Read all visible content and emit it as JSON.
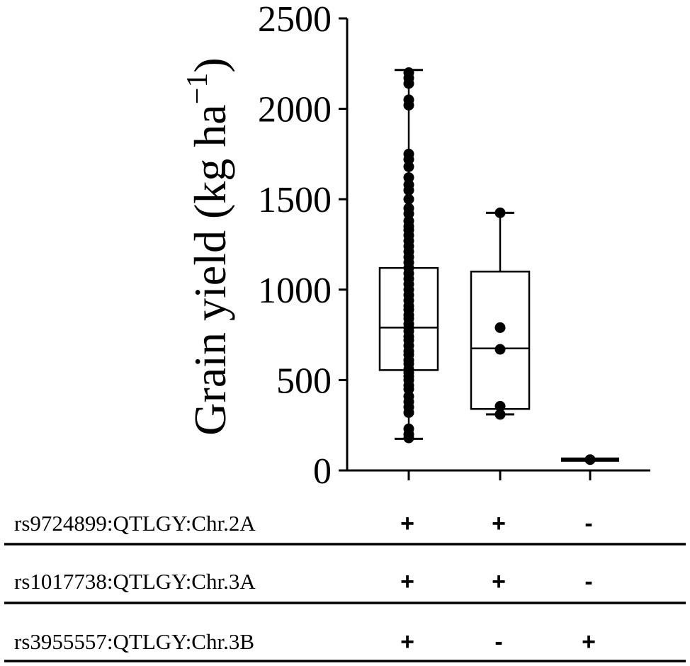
{
  "chart_data": {
    "type": "box",
    "ylabel": "Grain yield (kg ha",
    "ylabel_sup": "−1",
    "ylabel_close": ")",
    "ylim": [
      0,
      2500
    ],
    "yticks": [
      0,
      500,
      1000,
      1500,
      2000,
      2500
    ],
    "ytick_labels": [
      "0",
      "500",
      "1000",
      "1500",
      "2000",
      "2500"
    ],
    "groups": [
      {
        "min": 175,
        "q1": 555,
        "median": 790,
        "q3": 1120,
        "max": 2215,
        "points": [
          180,
          200,
          230,
          320,
          350,
          380,
          410,
          450,
          470,
          500,
          520,
          540,
          560,
          590,
          610,
          640,
          660,
          690,
          720,
          740,
          770,
          790,
          810,
          840,
          860,
          890,
          910,
          940,
          970,
          1000,
          1030,
          1060,
          1090,
          1120,
          1150,
          1180,
          1210,
          1240,
          1270,
          1300,
          1330,
          1350,
          1380,
          1420,
          1450,
          1500,
          1550,
          1580,
          1620,
          1680,
          1720,
          1750,
          2020,
          2050,
          2140,
          2170,
          2200
        ]
      },
      {
        "min": 310,
        "q1": 340,
        "median": 675,
        "q3": 1100,
        "max": 1425,
        "points": [
          310,
          355,
          670,
          790,
          1425
        ]
      },
      {
        "min": 60,
        "q1": 60,
        "median": 60,
        "q3": 60,
        "max": 60,
        "points": [
          60
        ]
      }
    ],
    "markers": [
      {
        "label": "rs9724899:QTLGY:Chr.2A",
        "signs": [
          "+",
          "+",
          "-"
        ]
      },
      {
        "label": "rs1017738:QTLGY:Chr.3A",
        "signs": [
          "+",
          "+",
          "-"
        ]
      },
      {
        "label": "rs3955557:QTLGY:Chr.3B",
        "signs": [
          "+",
          "-",
          "+"
        ]
      }
    ]
  }
}
